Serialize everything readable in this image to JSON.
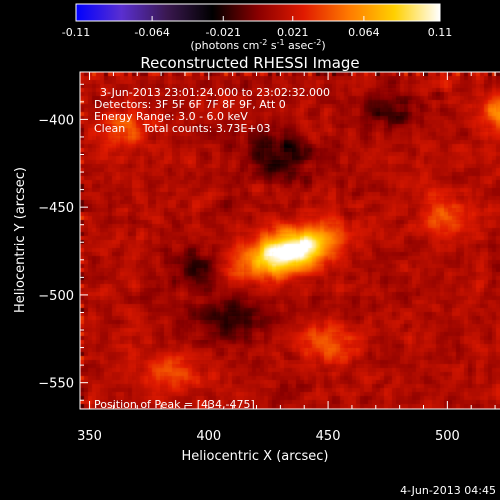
{
  "colorbar": {
    "tick_labels": [
      "-0.11",
      "-0.064",
      "-0.021",
      "0.021",
      "0.064",
      "0.11"
    ],
    "tick_values": [
      -0.11,
      -0.064,
      -0.021,
      0.021,
      0.064,
      0.11
    ],
    "range": [
      -0.11,
      0.11
    ],
    "unit_base": "(photons cm",
    "unit_exp1": "-2",
    "unit_mid": " s",
    "unit_exp2": "-1",
    "unit_mid2": " asec",
    "unit_exp3": "-2",
    "unit_end": ")",
    "colors": [
      "#0000ff",
      "#5a2fd0",
      "#3a1850",
      "#000000",
      "#8a0000",
      "#e01a00",
      "#ff7a00",
      "#ffd000",
      "#ffffff"
    ]
  },
  "chart_data": {
    "type": "heatmap",
    "title": "Reconstructed RHESSI Image",
    "xlabel": "Heliocentric X (arcsec)",
    "ylabel": "Heliocentric Y (arcsec)",
    "xlim": [
      346,
      538
    ],
    "ylim": [
      -565,
      -373
    ],
    "x_ticks": [
      350,
      400,
      450,
      500
    ],
    "y_ticks": [
      -550,
      -500,
      -450,
      -400
    ],
    "x_tick_labels": [
      "350",
      "400",
      "450",
      "500"
    ],
    "y_tick_labels": [
      "−550",
      "−500",
      "−450",
      "−400"
    ],
    "peak": {
      "x": 434,
      "y": -475,
      "value": 0.11
    },
    "sources": [
      {
        "x": 434,
        "y": -475,
        "sx": 14,
        "sy": 8,
        "angle": 25,
        "amp": 0.11
      },
      {
        "x": 526,
        "y": -396,
        "sx": 8,
        "sy": 8,
        "angle": 0,
        "amp": 0.05
      },
      {
        "x": 365,
        "y": -405,
        "sx": 7,
        "sy": 7,
        "angle": 0,
        "amp": 0.035
      },
      {
        "x": 500,
        "y": -455,
        "sx": 9,
        "sy": 8,
        "angle": 0,
        "amp": 0.03
      },
      {
        "x": 450,
        "y": -528,
        "sx": 10,
        "sy": 8,
        "angle": 0,
        "amp": 0.03
      },
      {
        "x": 385,
        "y": -545,
        "sx": 10,
        "sy": 8,
        "angle": 0,
        "amp": 0.025
      },
      {
        "x": 430,
        "y": -420,
        "sx": 10,
        "sy": 9,
        "angle": 0,
        "amp": -0.035
      },
      {
        "x": 395,
        "y": -485,
        "sx": 8,
        "sy": 8,
        "angle": 0,
        "amp": -0.03
      },
      {
        "x": 475,
        "y": -395,
        "sx": 9,
        "sy": 8,
        "angle": 0,
        "amp": -0.025
      },
      {
        "x": 410,
        "y": -515,
        "sx": 12,
        "sy": 9,
        "angle": 0,
        "amp": -0.03
      }
    ],
    "annotations": [
      "3-Jun-2013 23:01:24.000 to 23:02:32.000",
      "Detectors: 3F 5F 6F 7F 8F 9F, Att 0",
      "Energy Range: 3.0 - 6.0 keV",
      "Clean     Total counts: 3.73E+03"
    ],
    "peak_label": "Position of Peak = [434,-475]"
  },
  "timestamp": "4-Jun-2013 04:45"
}
